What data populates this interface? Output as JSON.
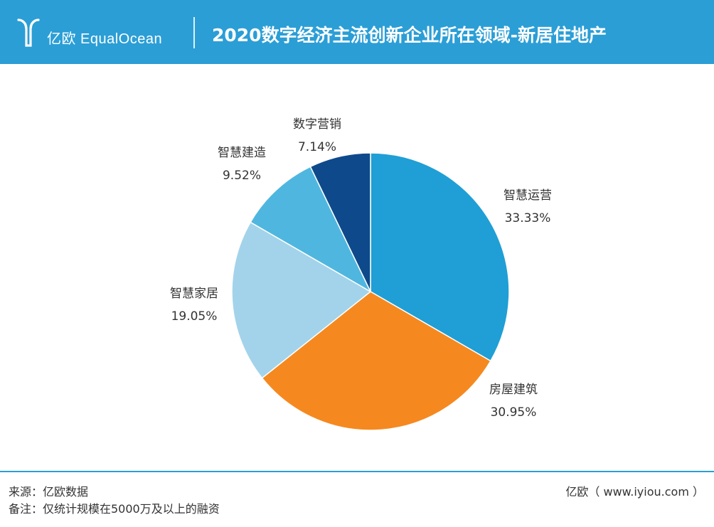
{
  "header": {
    "logo_text": "亿欧 EqualOcean",
    "title": "2020数字经济主流创新企业所在领域-新居住地产"
  },
  "chart_data": {
    "type": "pie",
    "title": "2020数字经济主流创新企业所在领域-新居住地产",
    "slices": [
      {
        "label": "智慧运营",
        "value": 33.33,
        "value_label": "33.33%",
        "color": "#1f9fd5"
      },
      {
        "label": "房屋建筑",
        "value": 30.95,
        "value_label": "30.95%",
        "color": "#f5891f"
      },
      {
        "label": "智慧家居",
        "value": 19.05,
        "value_label": "19.05%",
        "color": "#a3d3ea"
      },
      {
        "label": "智慧建造",
        "value": 9.52,
        "value_label": "9.52%",
        "color": "#4fb7df"
      },
      {
        "label": "数字营销",
        "value": 7.14,
        "value_label": "7.14%",
        "color": "#0e4a8b"
      }
    ],
    "start_angle": "12 o'clock",
    "direction": "clockwise"
  },
  "footer": {
    "source": "来源：亿欧数据",
    "note": "备注：仅统计规模在5000万及以上的融资",
    "site": "亿欧（ www.iyiou.com ）"
  }
}
